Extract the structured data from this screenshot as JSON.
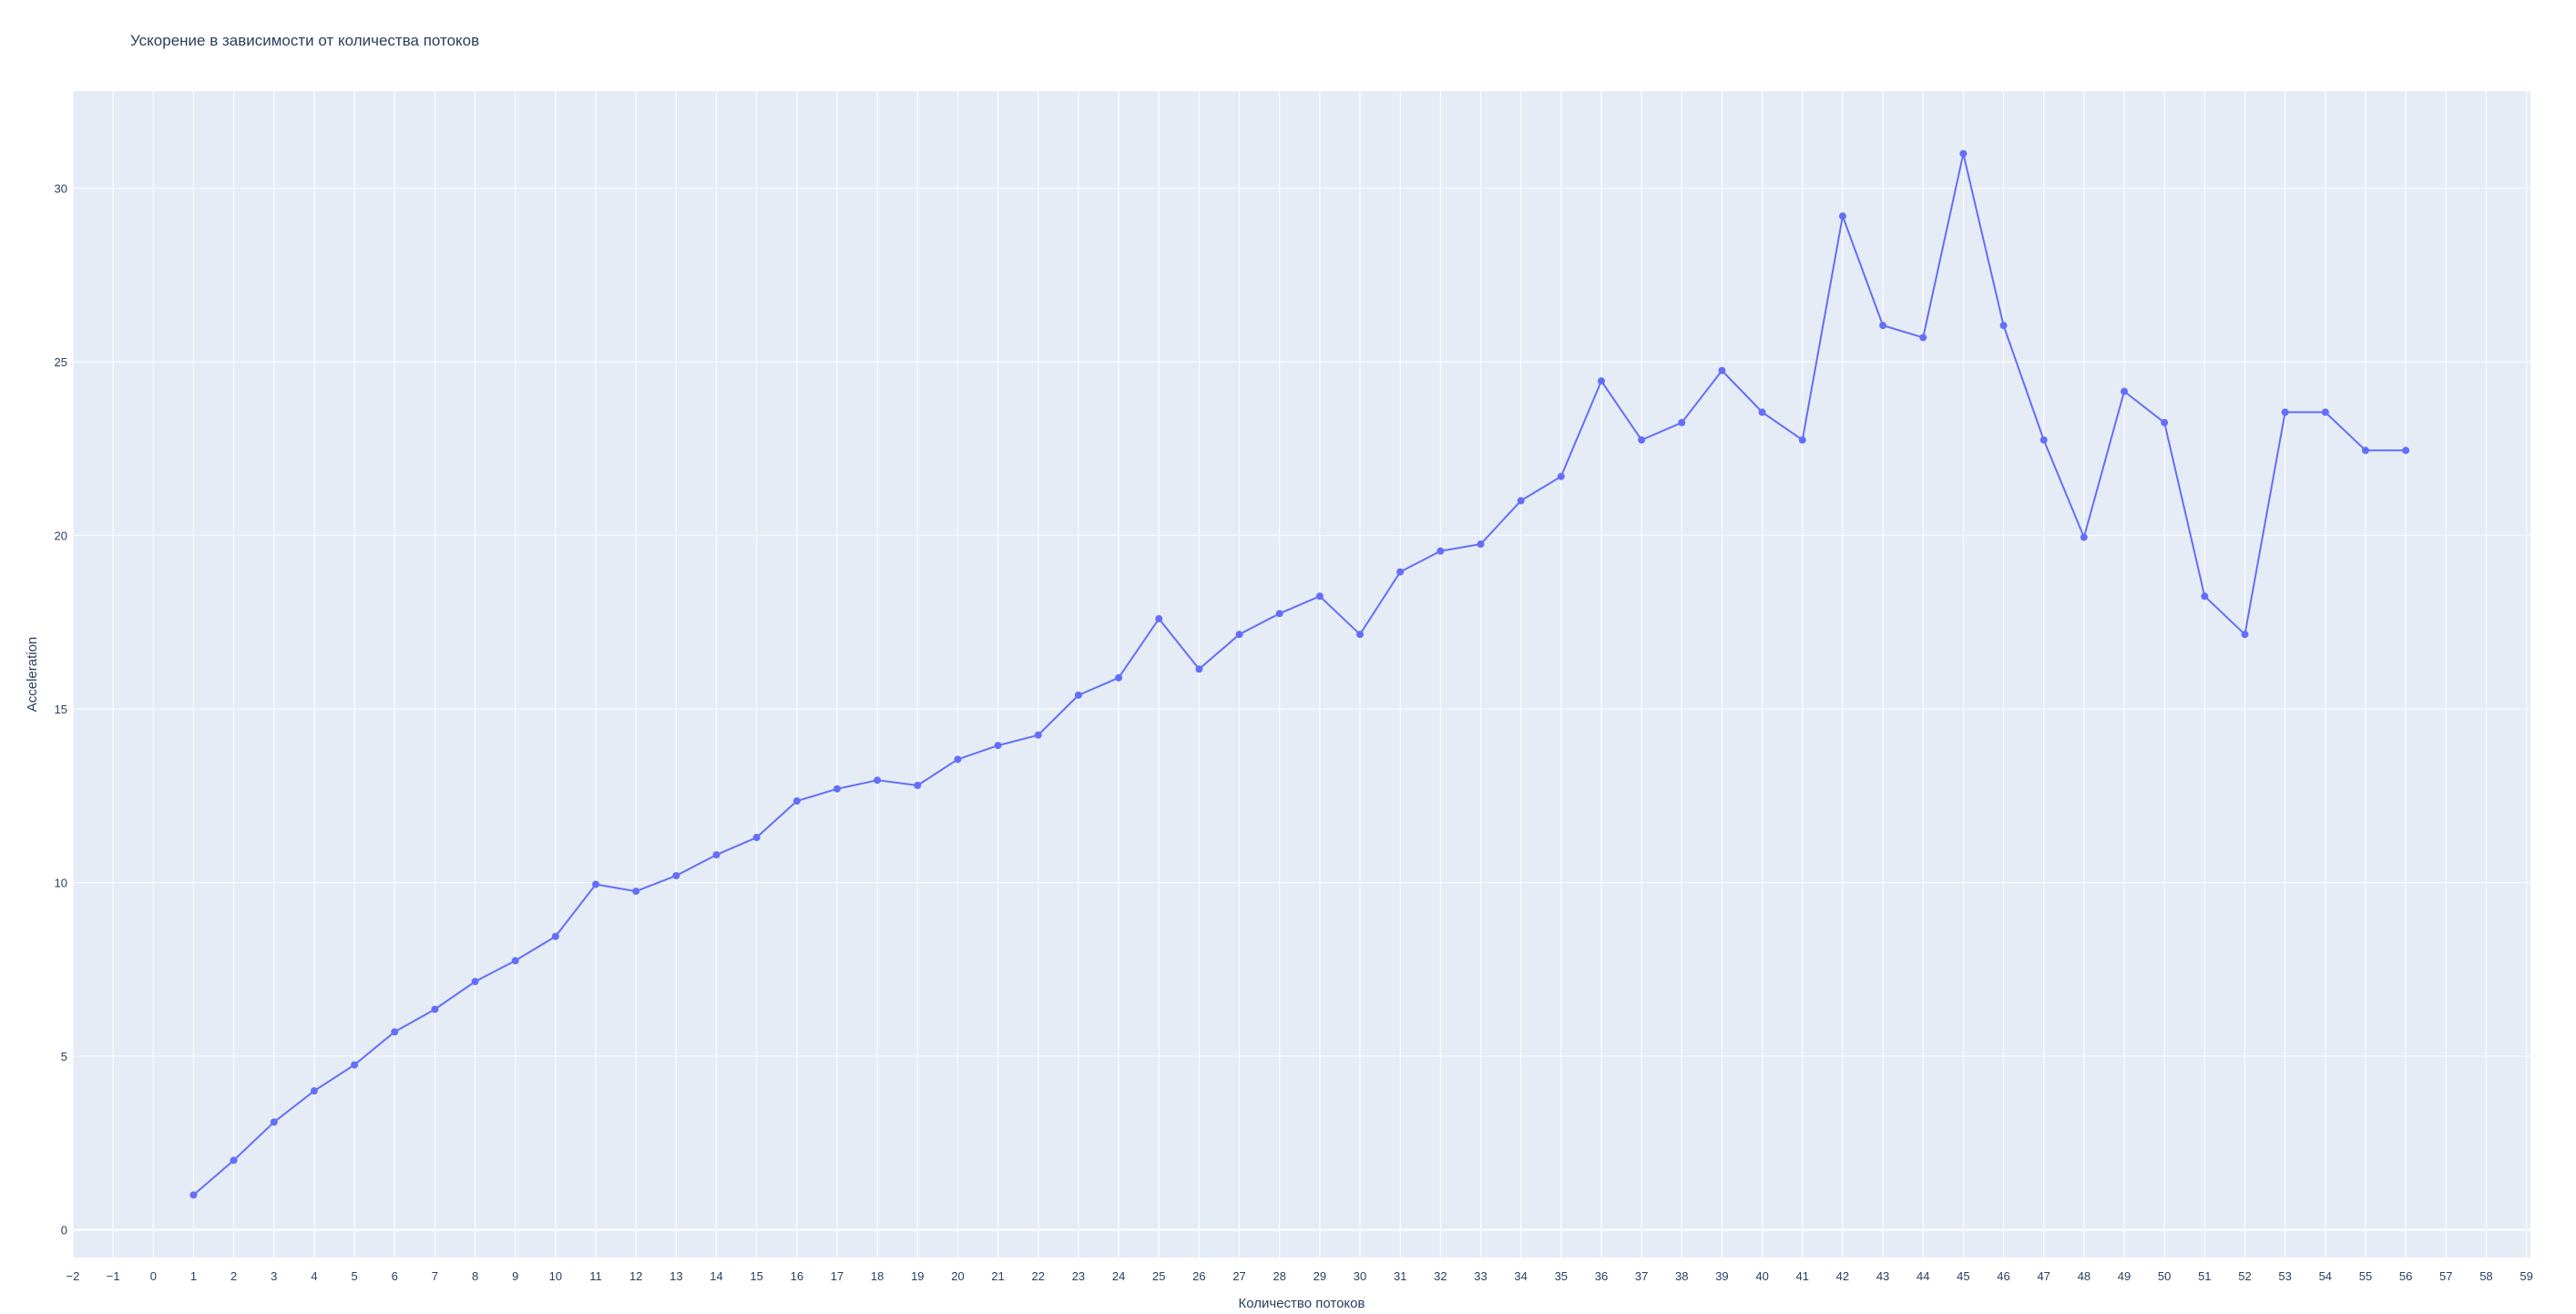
{
  "chart_data": {
    "type": "line",
    "title": "Ускорение в зависимости от количества потоков",
    "xlabel": "Количество потоков",
    "ylabel": "Acceleration",
    "xlim": [
      -2,
      59.1
    ],
    "ylim": [
      -0.8,
      32.8
    ],
    "x_ticks": [
      -2,
      -1,
      0,
      1,
      2,
      3,
      4,
      5,
      6,
      7,
      8,
      9,
      10,
      11,
      12,
      13,
      14,
      15,
      16,
      17,
      18,
      19,
      20,
      21,
      22,
      23,
      24,
      25,
      26,
      27,
      28,
      29,
      30,
      31,
      32,
      33,
      34,
      35,
      36,
      37,
      38,
      39,
      40,
      41,
      42,
      43,
      44,
      45,
      46,
      47,
      48,
      49,
      50,
      51,
      52,
      53,
      54,
      55,
      56,
      57,
      58,
      59
    ],
    "x_tick_labels": [
      "−2",
      "−1",
      "0",
      "1",
      "2",
      "3",
      "4",
      "5",
      "6",
      "7",
      "8",
      "9",
      "10",
      "11",
      "12",
      "13",
      "14",
      "15",
      "16",
      "17",
      "18",
      "19",
      "20",
      "21",
      "22",
      "23",
      "24",
      "25",
      "26",
      "27",
      "28",
      "29",
      "30",
      "31",
      "32",
      "33",
      "34",
      "35",
      "36",
      "37",
      "38",
      "39",
      "40",
      "41",
      "42",
      "43",
      "44",
      "45",
      "46",
      "47",
      "48",
      "49",
      "50",
      "51",
      "52",
      "53",
      "54",
      "55",
      "56",
      "57",
      "58",
      "59"
    ],
    "y_ticks": [
      0,
      5,
      10,
      15,
      20,
      25,
      30
    ],
    "y_tick_labels": [
      "0",
      "5",
      "10",
      "15",
      "20",
      "25",
      "30"
    ],
    "grid": true,
    "colors": {
      "line": "#636efa",
      "plot_bg": "#e5ecf6",
      "grid": "#ffffff",
      "text": "#2a3f5f"
    },
    "series": [
      {
        "x": [
          1,
          2,
          3,
          4,
          5,
          6,
          7,
          8,
          9,
          10,
          11,
          12,
          13,
          14,
          15,
          16,
          17,
          18,
          19,
          20,
          21,
          22,
          23,
          24,
          25,
          26,
          27,
          28,
          29,
          30,
          31,
          32,
          33,
          34,
          35,
          36,
          37,
          38,
          39,
          40,
          41,
          42,
          43,
          44,
          45,
          46,
          47,
          48,
          49,
          50,
          51,
          52,
          53,
          54,
          55,
          56
        ],
        "y": [
          1.0,
          2.0,
          3.1,
          4.0,
          4.75,
          5.7,
          6.35,
          7.15,
          7.75,
          8.45,
          9.95,
          9.75,
          10.2,
          10.8,
          11.3,
          12.35,
          12.7,
          12.95,
          12.8,
          13.55,
          13.95,
          14.25,
          15.4,
          15.9,
          17.6,
          16.15,
          17.15,
          17.75,
          18.25,
          17.15,
          18.95,
          19.55,
          19.75,
          21.0,
          21.7,
          24.45,
          22.75,
          23.25,
          24.75,
          23.55,
          22.75,
          29.2,
          26.05,
          25.7,
          31.0,
          26.05,
          22.75,
          19.95,
          24.15,
          23.25,
          18.25,
          17.15,
          23.55,
          23.55,
          22.45,
          22.45
        ]
      }
    ]
  }
}
